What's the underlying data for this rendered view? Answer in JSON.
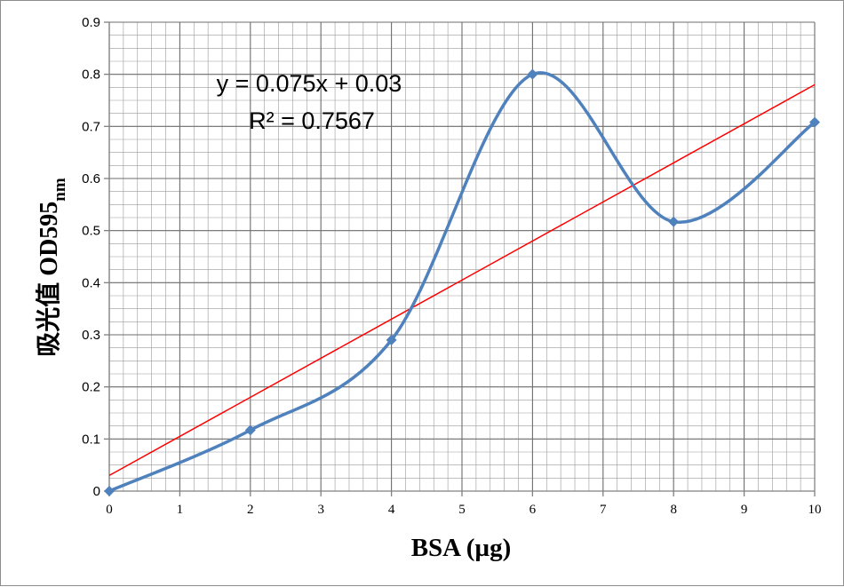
{
  "chart_data": {
    "type": "scatter",
    "title": "",
    "xlabel": "BSA (µg)",
    "ylabel": "吸光值 OD595",
    "ylabel_subscript": "nm",
    "xlim": [
      0,
      10
    ],
    "ylim": [
      0,
      0.9
    ],
    "x_ticks": [
      "0",
      "1",
      "2",
      "3",
      "4",
      "5",
      "6",
      "7",
      "8",
      "9",
      "10"
    ],
    "y_ticks": [
      "0",
      "0.1",
      "0.2",
      "0.3",
      "0.4",
      "0.5",
      "0.6",
      "0.7",
      "0.8",
      "0.9"
    ],
    "grid": true,
    "legend": "none",
    "series": [
      {
        "x": [
          0,
          2,
          4,
          6,
          8,
          10
        ],
        "y": [
          0,
          0.117,
          0.29,
          0.8,
          0.517,
          0.708
        ],
        "style": "smooth-line-with-diamond-markers",
        "color": "#4f81bd"
      }
    ],
    "trendline": {
      "type": "linear",
      "slope": 0.075,
      "intercept": 0.03,
      "color": "#ff0000",
      "equation": "y = 0.075x + 0.03",
      "r_squared": "R² = 0.7567"
    }
  }
}
